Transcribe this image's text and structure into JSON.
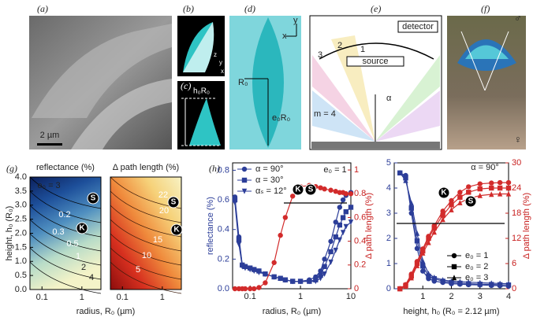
{
  "panels": {
    "a": {
      "label": "(a)",
      "scale_bar": "2 µm"
    },
    "b": {
      "label": "(b)",
      "axes": [
        "z",
        "y",
        "x"
      ]
    },
    "c": {
      "label": "(c)",
      "height": "h₀R₀"
    },
    "d": {
      "label": "(d)",
      "radius": "R₀",
      "height": "e₀R₀",
      "x_axis": "x",
      "y_axis": "y"
    },
    "e": {
      "label": "(e)",
      "detector": "detector",
      "source": "source",
      "orders": [
        "1",
        "2",
        "3",
        "m = 4"
      ],
      "angle": "α"
    },
    "f": {
      "label": "(f)",
      "male": "♂",
      "female": "♀"
    }
  },
  "chart_data": [
    {
      "type": "contour",
      "panel_label": "(g)",
      "title": "reflectance (%)",
      "xlabel": "radius, R₀ (µm)",
      "ylabel": "height, h₀ (R₀)",
      "log_x": true,
      "xlim": [
        0.05,
        3
      ],
      "ylim": [
        0,
        4
      ],
      "xticks": [
        0.1,
        1
      ],
      "yticks": [
        {
          "value": 0,
          "label": "0.0"
        },
        0.5,
        {
          "value": 1,
          "label": "1.0"
        },
        1.5,
        {
          "value": 2,
          "label": "2.0"
        },
        2.5,
        {
          "value": 3,
          "label": "3.0"
        },
        3.5,
        {
          "value": 4,
          "label": "4.0"
        }
      ],
      "colormap": [
        "#0b1f5c",
        "#1d4f9a",
        "#4f8fc0",
        "#b8dcc8",
        "#f4f3c8"
      ],
      "annotations": [
        "e₀ = 3",
        "0.2",
        "0.3",
        "0.5",
        "1",
        "2",
        "4",
        "S",
        "K"
      ]
    },
    {
      "type": "contour",
      "title": "Δ path length (%)",
      "log_x": true,
      "xlim": [
        0.05,
        3
      ],
      "ylim": [
        0,
        4
      ],
      "xticks": [
        0.1,
        1
      ],
      "colormap": [
        "#f7f2c4",
        "#f6d27a",
        "#ef8a3c",
        "#d7301f",
        "#8c0d0d"
      ],
      "annotations": [
        "22",
        "20",
        "15",
        "10",
        "5",
        "S",
        "K"
      ]
    },
    {
      "type": "line",
      "panel_label": "(h)",
      "xlabel": "radius, R₀ (µm)",
      "ylabel": "reflectance (%)",
      "y2label": "Δ path length (%)",
      "log_x": true,
      "xlim": [
        0.045,
        10
      ],
      "ylim": [
        0,
        0.85
      ],
      "y2lim": [
        0,
        1.06
      ],
      "xticks": [
        0.1,
        1,
        10
      ],
      "yticks": [
        {
          "value": 0,
          "label": "0.0"
        },
        0.2,
        0.4,
        0.6,
        0.8
      ],
      "y2ticks": [
        0,
        0.2,
        0.4,
        0.6,
        0.8,
        1
      ],
      "legend": "upper left",
      "x": [
        0.05,
        0.06,
        0.07,
        0.08,
        0.1,
        0.12,
        0.15,
        0.2,
        0.3,
        0.4,
        0.5,
        0.7,
        1,
        1.5,
        2,
        2.5,
        3,
        4,
        5,
        6,
        7,
        8,
        10
      ],
      "series": [
        {
          "name": "α = 90°",
          "color": "#2c3e99",
          "marker": "circle",
          "values": [
            0.62,
            0.35,
            0.16,
            0.15,
            0.14,
            0.13,
            0.12,
            0.1,
            0.08,
            0.07,
            0.06,
            0.05,
            0.05,
            0.06,
            0.08,
            0.12,
            0.2,
            0.32,
            0.45,
            0.55,
            0.6,
            0.63,
            0.65
          ]
        },
        {
          "name": "α = 30°",
          "color": "#2c3e99",
          "marker": "square",
          "values": [
            0.6,
            0.33,
            0.16,
            0.15,
            0.14,
            0.13,
            0.12,
            0.1,
            0.08,
            0.07,
            0.06,
            0.05,
            0.05,
            0.05,
            0.06,
            0.09,
            0.15,
            0.25,
            0.35,
            0.43,
            0.48,
            0.52,
            0.55
          ]
        },
        {
          "name": "αₛ = 12°",
          "color": "#2c3e99",
          "marker": "triangle-down",
          "values": [
            0.58,
            0.3,
            0.15,
            0.14,
            0.13,
            0.12,
            0.11,
            0.1,
            0.08,
            0.07,
            0.06,
            0.05,
            0.05,
            0.05,
            0.05,
            0.07,
            0.1,
            0.18,
            0.26,
            0.33,
            0.38,
            0.42,
            0.45
          ]
        },
        {
          "color": "#d22b2b",
          "marker": "circle",
          "axis": "y2",
          "values": [
            0,
            0,
            0,
            0,
            0,
            0,
            0.01,
            0.05,
            0.22,
            0.45,
            0.6,
            0.78,
            0.86,
            0.87,
            0.86,
            0.85,
            0.84,
            0.83,
            0.82,
            0.81,
            0.81,
            0.8,
            0.8
          ]
        }
      ],
      "annotations": [
        "e₀ = 1",
        "K",
        "S"
      ]
    },
    {
      "type": "line",
      "xlabel": "height, h₀ (R₀ = 2.12 µm)",
      "y2label": "Δ path length (%)",
      "xlim": [
        0,
        4
      ],
      "ylim": [
        0,
        5
      ],
      "y2lim": [
        0,
        30
      ],
      "xticks": [
        1,
        2,
        3,
        4
      ],
      "yticks": [
        0,
        1,
        2,
        3,
        4,
        5
      ],
      "y2ticks": [
        0,
        6,
        12,
        18,
        24,
        30
      ],
      "legend": "lower right",
      "x": [
        0.2,
        0.4,
        0.6,
        0.8,
        1,
        1.2,
        1.4,
        1.7,
        2,
        2.3,
        2.6,
        3,
        3.4,
        3.7,
        4
      ],
      "series": [
        {
          "name": "e₀ = 1",
          "color": "#2c3e99",
          "marker": "circle",
          "values": [
            4.6,
            4.5,
            3.0,
            1.6,
            0.7,
            0.4,
            0.3,
            0.25,
            0.2,
            0.18,
            0.16,
            0.15,
            0.13,
            0.12,
            0.1
          ]
        },
        {
          "name": "e₀ = 2",
          "color": "#2c3e99",
          "marker": "square",
          "values": [
            4.6,
            4.4,
            3.2,
            1.9,
            0.9,
            0.5,
            0.4,
            0.3,
            0.25,
            0.22,
            0.2,
            0.18,
            0.17,
            0.16,
            0.15
          ]
        },
        {
          "name": "e₀ = 3",
          "color": "#2c3e99",
          "marker": "triangle",
          "values": [
            4.6,
            4.3,
            3.4,
            2.2,
            1.1,
            0.6,
            0.45,
            0.35,
            0.3,
            0.28,
            0.26,
            0.24,
            0.22,
            0.21,
            0.2
          ]
        },
        {
          "color": "#d22b2b",
          "marker": "circle",
          "axis": "y2",
          "values": [
            0,
            1,
            3.5,
            6.5,
            9.5,
            12.5,
            15,
            18.5,
            21,
            23,
            24.3,
            25,
            25.2,
            25.3,
            25.3
          ]
        },
        {
          "color": "#d22b2b",
          "marker": "square",
          "axis": "y2",
          "values": [
            0,
            0.8,
            3,
            6,
            9,
            12,
            14.5,
            17.5,
            20,
            21.8,
            23,
            23.8,
            24,
            24,
            24
          ]
        },
        {
          "color": "#d22b2b",
          "marker": "triangle",
          "axis": "y2",
          "values": [
            0,
            0.6,
            2.6,
            5.5,
            8.5,
            11,
            13.5,
            16.5,
            18.8,
            20.5,
            21.5,
            22.2,
            22.5,
            22.6,
            22.6
          ]
        }
      ],
      "annotations": [
        "α = 90°",
        "K",
        "S"
      ]
    }
  ]
}
